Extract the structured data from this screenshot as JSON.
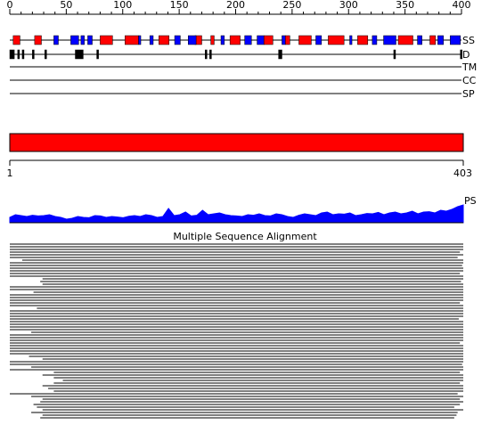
{
  "ruler": {
    "ticks": [
      0,
      50,
      100,
      150,
      200,
      250,
      300,
      350,
      400
    ]
  },
  "tracks": {
    "ss": {
      "label": "SS",
      "helix_color": "#ff0000",
      "strand_color": "#0000ff",
      "helices": [
        [
          3,
          9
        ],
        [
          22,
          28
        ],
        [
          80,
          91
        ],
        [
          102,
          114
        ],
        [
          132,
          141
        ],
        [
          164,
          170
        ],
        [
          178,
          181
        ],
        [
          195,
          204
        ],
        [
          225,
          233
        ],
        [
          244,
          248
        ],
        [
          256,
          267
        ],
        [
          282,
          296
        ],
        [
          308,
          317
        ],
        [
          344,
          357
        ],
        [
          372,
          377
        ]
      ],
      "strands": [
        [
          39,
          43
        ],
        [
          54,
          61
        ],
        [
          63,
          66
        ],
        [
          69,
          73
        ],
        [
          114,
          116
        ],
        [
          124,
          127
        ],
        [
          146,
          151
        ],
        [
          158,
          165
        ],
        [
          187,
          190
        ],
        [
          208,
          214
        ],
        [
          219,
          225
        ],
        [
          241,
          244
        ],
        [
          271,
          276
        ],
        [
          301,
          303
        ],
        [
          321,
          325
        ],
        [
          331,
          342
        ],
        [
          361,
          365
        ],
        [
          379,
          384
        ],
        [
          390,
          399
        ]
      ]
    },
    "d": {
      "label": "D",
      "color": "#000000",
      "regions": [
        [
          0,
          4
        ],
        [
          7,
          7
        ],
        [
          11,
          11
        ],
        [
          20,
          20
        ],
        [
          31,
          31
        ],
        [
          58,
          65
        ],
        [
          77,
          77
        ],
        [
          173,
          173
        ],
        [
          177,
          177
        ],
        [
          238,
          241
        ],
        [
          340,
          341
        ],
        [
          399,
          400
        ]
      ]
    },
    "tm": {
      "label": "TM"
    },
    "cc": {
      "label": "CC"
    },
    "sp": {
      "label": "SP"
    }
  },
  "sequence": {
    "start": 1,
    "end": 403,
    "color": "#ff0000"
  },
  "ps": {
    "label": "PS",
    "color": "#0000ff",
    "values": [
      30,
      45,
      40,
      35,
      42,
      38,
      40,
      45,
      35,
      30,
      20,
      25,
      35,
      30,
      28,
      40,
      38,
      30,
      35,
      32,
      28,
      36,
      40,
      35,
      45,
      40,
      30,
      35,
      80,
      40,
      45,
      60,
      38,
      42,
      70,
      45,
      50,
      55,
      45,
      40,
      38,
      35,
      45,
      42,
      50,
      40,
      38,
      50,
      45,
      35,
      30,
      42,
      50,
      45,
      40,
      55,
      60,
      45,
      50,
      48,
      55,
      40,
      45,
      52,
      50,
      58,
      45,
      55,
      60,
      50,
      55,
      65,
      50,
      60,
      62,
      55,
      70,
      65,
      75,
      90,
      100
    ]
  },
  "alignment": {
    "title": "Multiple Sequence Alignment",
    "rows": [
      [
        1,
        403
      ],
      [
        1,
        403
      ],
      [
        1,
        403
      ],
      [
        1,
        400
      ],
      [
        1,
        403
      ],
      [
        1,
        398
      ],
      [
        12,
        403
      ],
      [
        1,
        403
      ],
      [
        1,
        402
      ],
      [
        1,
        403
      ],
      [
        1,
        403
      ],
      [
        1,
        400
      ],
      [
        1,
        403
      ],
      [
        30,
        403
      ],
      [
        28,
        401
      ],
      [
        30,
        403
      ],
      [
        1,
        403
      ],
      [
        1,
        403
      ],
      [
        22,
        403
      ],
      [
        1,
        403
      ],
      [
        1,
        403
      ],
      [
        1,
        403
      ],
      [
        1,
        400
      ],
      [
        1,
        403
      ],
      [
        25,
        403
      ],
      [
        1,
        403
      ],
      [
        1,
        403
      ],
      [
        1,
        403
      ],
      [
        1,
        399
      ],
      [
        1,
        403
      ],
      [
        1,
        403
      ],
      [
        1,
        403
      ],
      [
        1,
        403
      ],
      [
        20,
        403
      ],
      [
        1,
        403
      ],
      [
        1,
        403
      ],
      [
        1,
        403
      ],
      [
        1,
        400
      ],
      [
        1,
        403
      ],
      [
        1,
        403
      ],
      [
        1,
        403
      ],
      [
        1,
        403
      ],
      [
        18,
        403
      ],
      [
        30,
        403
      ],
      [
        1,
        403
      ],
      [
        1,
        402
      ],
      [
        20,
        403
      ],
      [
        1,
        403
      ],
      [
        40,
        400
      ],
      [
        30,
        403
      ],
      [
        40,
        403
      ],
      [
        48,
        403
      ],
      [
        40,
        400
      ],
      [
        30,
        403
      ],
      [
        35,
        403
      ],
      [
        40,
        403
      ],
      [
        1,
        398
      ],
      [
        20,
        403
      ],
      [
        30,
        400
      ],
      [
        28,
        403
      ],
      [
        22,
        400
      ],
      [
        25,
        395
      ],
      [
        30,
        403
      ],
      [
        20,
        398
      ],
      [
        30,
        397
      ],
      [
        28,
        395
      ]
    ]
  }
}
